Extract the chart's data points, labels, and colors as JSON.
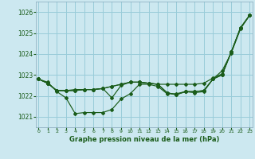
{
  "title": "Graphe pression niveau de la mer (hPa)",
  "bg_color": "#cce8f0",
  "grid_color": "#99ccd9",
  "line_color": "#1a5c1a",
  "text_color": "#1a5c1a",
  "ylim": [
    1020.5,
    1026.5
  ],
  "yticks": [
    1021,
    1022,
    1023,
    1024,
    1025,
    1026
  ],
  "xlim": [
    -0.3,
    23.3
  ],
  "xticks": [
    0,
    1,
    2,
    3,
    4,
    5,
    6,
    7,
    8,
    9,
    10,
    11,
    12,
    13,
    14,
    15,
    16,
    17,
    18,
    19,
    20,
    21,
    22,
    23
  ],
  "series": [
    [
      1022.8,
      1022.65,
      1022.2,
      1021.9,
      1021.15,
      1021.2,
      1021.2,
      1021.2,
      1021.35,
      1021.85,
      1022.1,
      1022.55,
      1022.55,
      1022.45,
      1022.1,
      1022.1,
      1022.2,
      1022.15,
      1022.2,
      1022.8,
      1023.2,
      1024.05,
      1025.2,
      1025.85
    ],
    [
      1022.8,
      1022.6,
      1022.25,
      1022.25,
      1022.25,
      1022.3,
      1022.3,
      1022.35,
      1022.45,
      1022.55,
      1022.65,
      1022.65,
      1022.6,
      1022.55,
      1022.55,
      1022.55,
      1022.55,
      1022.55,
      1022.6,
      1022.85,
      1023.05,
      1024.1,
      1025.25,
      1025.85
    ],
    [
      1022.8,
      1022.6,
      1022.25,
      1022.25,
      1022.25,
      1022.3,
      1022.3,
      1022.35,
      1022.45,
      1022.55,
      1022.65,
      1022.65,
      1022.6,
      1022.55,
      1022.15,
      1022.05,
      1022.2,
      1022.2,
      1022.25,
      1022.8,
      1023.0,
      1024.1,
      1025.25,
      1025.85
    ],
    [
      1022.8,
      1022.6,
      1022.25,
      1022.25,
      1022.3,
      1022.3,
      1022.3,
      1022.35,
      1021.9,
      1022.5,
      1022.65,
      1022.65,
      1022.6,
      1022.55,
      1022.15,
      1022.05,
      1022.2,
      1022.2,
      1022.25,
      1022.8,
      1023.0,
      1024.1,
      1025.25,
      1025.85
    ]
  ],
  "figsize": [
    3.2,
    2.0
  ],
  "dpi": 100
}
